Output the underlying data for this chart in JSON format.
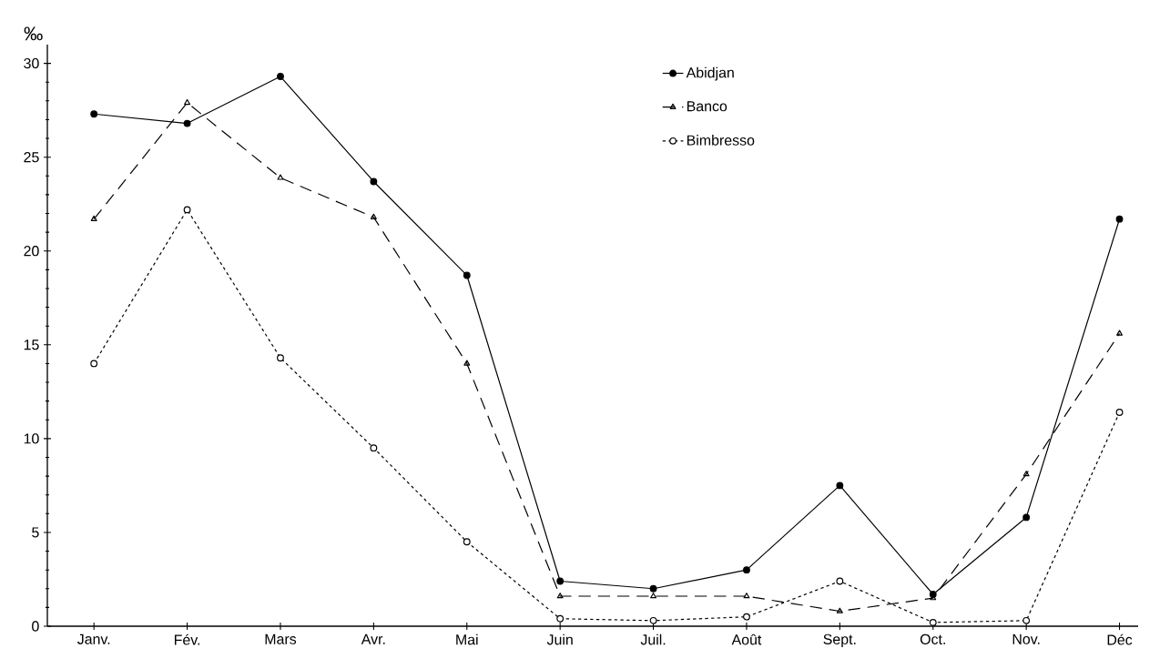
{
  "chart_data": {
    "type": "line",
    "ylabel": "‰",
    "categories": [
      "Janv.",
      "Fév.",
      "Mars",
      "Avr.",
      "Mai",
      "Juin",
      "Juil.",
      "Août",
      "Sept.",
      "Oct.",
      "Nov.",
      "Déc"
    ],
    "ylim": [
      0,
      31
    ],
    "yticks": [
      0,
      5,
      10,
      15,
      20,
      25,
      30
    ],
    "grid": false,
    "legend": "top right",
    "series": [
      {
        "name": "Abidjan",
        "color": "#000000",
        "marker": "circle",
        "line_style": "solid",
        "values": [
          27.3,
          26.8,
          29.3,
          23.7,
          18.7,
          2.4,
          2.0,
          3.0,
          7.5,
          1.7,
          5.8,
          21.7
        ]
      },
      {
        "name": "Banco",
        "color": "#000000",
        "marker": "triangle",
        "line_style": "dashed",
        "values": [
          21.7,
          27.9,
          23.9,
          21.8,
          14.0,
          1.6,
          1.6,
          1.6,
          0.8,
          1.5,
          8.1,
          15.6
        ]
      },
      {
        "name": "Bimbresso",
        "color": "#000000",
        "marker": "circle",
        "line_style": "dotted",
        "values": [
          14.0,
          22.2,
          14.3,
          9.5,
          4.5,
          0.4,
          0.3,
          0.5,
          2.4,
          0.2,
          0.3,
          11.4
        ]
      }
    ]
  }
}
